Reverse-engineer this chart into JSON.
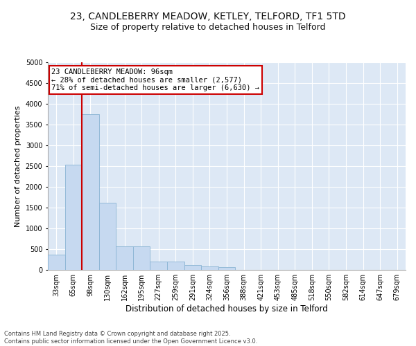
{
  "title1": "23, CANDLEBERRY MEADOW, KETLEY, TELFORD, TF1 5TD",
  "title2": "Size of property relative to detached houses in Telford",
  "xlabel": "Distribution of detached houses by size in Telford",
  "ylabel": "Number of detached properties",
  "categories": [
    "33sqm",
    "65sqm",
    "98sqm",
    "130sqm",
    "162sqm",
    "195sqm",
    "227sqm",
    "259sqm",
    "291sqm",
    "324sqm",
    "356sqm",
    "388sqm",
    "421sqm",
    "453sqm",
    "485sqm",
    "518sqm",
    "550sqm",
    "582sqm",
    "614sqm",
    "647sqm",
    "679sqm"
  ],
  "values": [
    370,
    2530,
    3750,
    1620,
    560,
    560,
    200,
    200,
    120,
    90,
    65,
    0,
    0,
    0,
    0,
    0,
    0,
    0,
    0,
    0,
    0
  ],
  "bar_color": "#c6d9f0",
  "bar_edge_color": "#8ab4d4",
  "vline_color": "#cc0000",
  "annotation_text": "23 CANDLEBERRY MEADOW: 96sqm\n← 28% of detached houses are smaller (2,577)\n71% of semi-detached houses are larger (6,630) →",
  "annotation_box_color": "#cc0000",
  "ylim": [
    0,
    5000
  ],
  "yticks": [
    0,
    500,
    1000,
    1500,
    2000,
    2500,
    3000,
    3500,
    4000,
    4500,
    5000
  ],
  "bg_color": "#dde8f5",
  "grid_color": "#ffffff",
  "footer": "Contains HM Land Registry data © Crown copyright and database right 2025.\nContains public sector information licensed under the Open Government Licence v3.0.",
  "title_fontsize": 10,
  "subtitle_fontsize": 9,
  "annotation_fontsize": 7.5,
  "ylabel_fontsize": 8,
  "xlabel_fontsize": 8.5,
  "tick_fontsize": 7,
  "footer_fontsize": 6
}
